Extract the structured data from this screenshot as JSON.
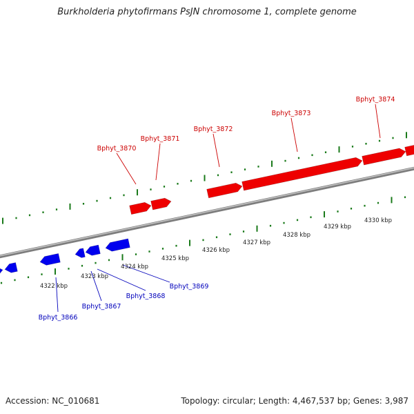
{
  "title": "Burkholderia phytofirmans PsJN chromosome 1, complete genome",
  "footer": {
    "accession": "Accession: NC_010681",
    "summary": "Topology: circular; Length: 4,467,537 bp; Genes: 3,987"
  },
  "colors": {
    "forward_strand": "#ee0000",
    "reverse_strand": "#0000ee",
    "forward_label": "#cc0000",
    "reverse_label": "#0000bb",
    "backbone": "#999999",
    "ticks": "#1a7a1a"
  },
  "scale_labels": [
    "4322 kbp",
    "4323 kbp",
    "4324 kbp",
    "4325 kbp",
    "4326 kbp",
    "4327 kbp",
    "4328 kbp",
    "4329 kbp",
    "4330 kbp"
  ],
  "forward_genes": [
    "Bphyt_3870",
    "Bphyt_3871",
    "Bphyt_3872",
    "Bphyt_3873",
    "Bphyt_3874"
  ],
  "reverse_genes": [
    "Bphyt_3866",
    "Bphyt_3867",
    "Bphyt_3868",
    "Bphyt_3869"
  ]
}
